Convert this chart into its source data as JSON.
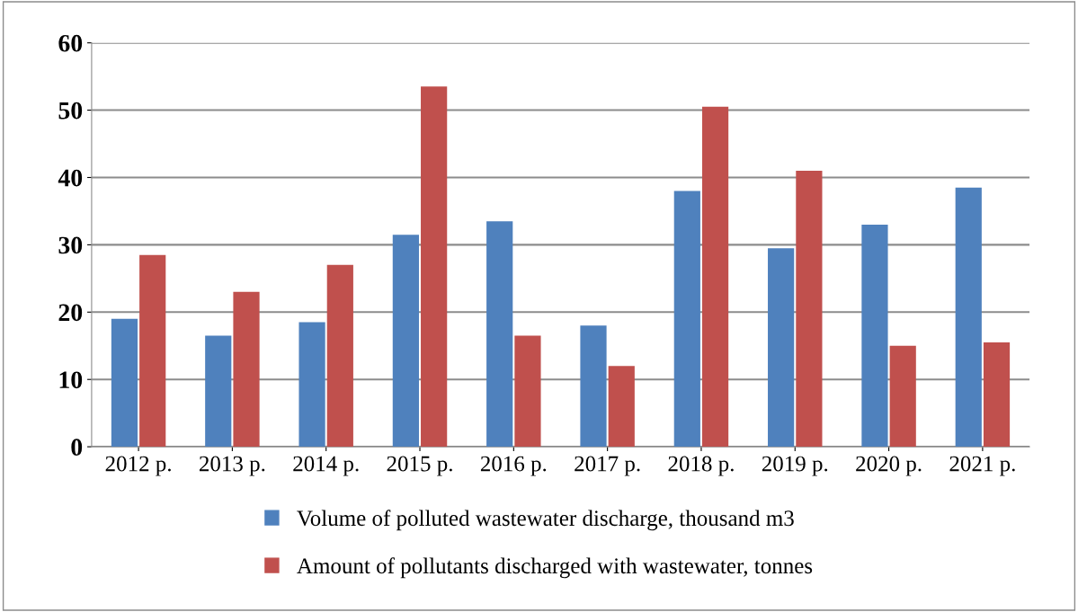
{
  "chart_data": {
    "type": "bar",
    "categories": [
      "2012 р.",
      "2013 р.",
      "2014 р.",
      "2015 р.",
      "2016 р.",
      "2017 р.",
      "2018 р.",
      "2019 р.",
      "2020 р.",
      "2021 р."
    ],
    "series": [
      {
        "name": "Volume of polluted wastewater discharge, thousand m3",
        "color": "#4f81bd",
        "values": [
          19,
          16.5,
          18.5,
          31.5,
          33.5,
          18,
          38,
          29.5,
          33,
          38.5
        ]
      },
      {
        "name": "Amount of pollutants discharged with wastewater, tonnes",
        "color": "#c0504d",
        "values": [
          28.5,
          23,
          27,
          53.5,
          16.5,
          12,
          50.5,
          41,
          15,
          15.5
        ]
      }
    ],
    "ylim": [
      0,
      60
    ],
    "yticks": [
      0,
      10,
      20,
      30,
      40,
      50,
      60
    ],
    "grid": "y",
    "legend": "bottom"
  }
}
